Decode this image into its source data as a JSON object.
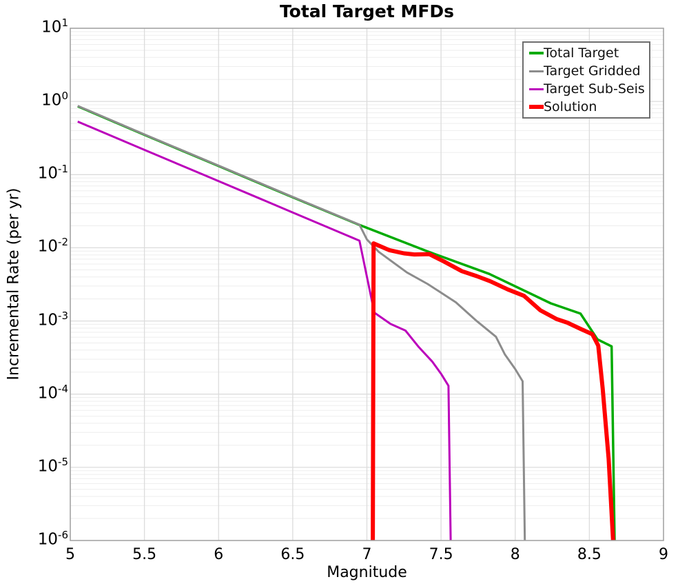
{
  "title": "Total Target MFDs",
  "xlabel": "Magnitude",
  "ylabel": "Incremental Rate (per yr)",
  "chart_data": {
    "type": "line",
    "title": "Total Target MFDs",
    "xlabel": "Magnitude",
    "ylabel": "Incremental Rate (per yr)",
    "x_scale": "linear",
    "y_scale": "log",
    "xlim": [
      5,
      9
    ],
    "ylim_log10": [
      -6,
      1
    ],
    "x_ticks": [
      5,
      5.5,
      6,
      6.5,
      7,
      7.5,
      8,
      8.5,
      9
    ],
    "x_tick_labels": [
      "5",
      "5.5",
      "6",
      "6.5",
      "7",
      "7.5",
      "8",
      "8.5",
      "9"
    ],
    "y_tick_exponents": [
      1,
      0,
      -1,
      -2,
      -3,
      -4,
      -5,
      -6
    ],
    "grid": {
      "major": true,
      "minor_y": true,
      "major_color": "#dcdcdc",
      "minor_color": "#ededed",
      "border_color": "#a3a3a3"
    },
    "legend": {
      "position": "upper right",
      "entries": [
        "Total Target",
        "Target Gridded",
        "Target Sub-Seis",
        "Solution"
      ]
    },
    "series": [
      {
        "name": "Total Target",
        "color": "#00ab00",
        "width": 3.5,
        "points": [
          [
            5.05,
            0.86
          ],
          [
            5.5,
            0.35
          ],
          [
            6.0,
            0.131
          ],
          [
            6.5,
            0.049
          ],
          [
            6.95,
            0.0205
          ],
          [
            7.41,
            0.0089
          ],
          [
            7.825,
            0.0044
          ],
          [
            8.24,
            0.00174
          ],
          [
            8.44,
            0.00126
          ],
          [
            8.555,
            0.00056
          ],
          [
            8.65,
            0.00045
          ],
          [
            8.67,
            1e-06
          ]
        ]
      },
      {
        "name": "Target Gridded",
        "color": "#8c8c8c",
        "width": 3,
        "points": [
          [
            5.05,
            0.87
          ],
          [
            5.5,
            0.354
          ],
          [
            6.0,
            0.1325
          ],
          [
            6.5,
            0.0496
          ],
          [
            6.95,
            0.0207
          ],
          [
            7.0,
            0.013
          ],
          [
            7.08,
            0.0088
          ],
          [
            7.27,
            0.0046
          ],
          [
            7.41,
            0.0032
          ],
          [
            7.6,
            0.0018
          ],
          [
            7.74,
            0.001
          ],
          [
            7.87,
            0.00061
          ],
          [
            7.93,
            0.00035
          ],
          [
            8.0,
            0.00022
          ],
          [
            8.05,
            0.00015
          ],
          [
            8.065,
            1e-06
          ]
        ]
      },
      {
        "name": "Target Sub-Seis",
        "color": "#bb00bb",
        "width": 3,
        "points": [
          [
            5.05,
            0.53
          ],
          [
            5.5,
            0.218
          ],
          [
            6.0,
            0.0815
          ],
          [
            6.5,
            0.0304
          ],
          [
            6.95,
            0.0125
          ],
          [
            7.05,
            0.0013
          ],
          [
            7.16,
            0.00091
          ],
          [
            7.26,
            0.00074
          ],
          [
            7.35,
            0.00044
          ],
          [
            7.44,
            0.00028
          ],
          [
            7.5,
            0.00019
          ],
          [
            7.55,
            0.00013
          ],
          [
            7.565,
            1e-06
          ]
        ]
      },
      {
        "name": "Solution",
        "color": "#ff0000",
        "width": 6,
        "points": [
          [
            7.04,
            1e-06
          ],
          [
            7.045,
            0.0115
          ],
          [
            7.15,
            0.0093
          ],
          [
            7.25,
            0.0084
          ],
          [
            7.32,
            0.0081
          ],
          [
            7.42,
            0.0082
          ],
          [
            7.52,
            0.0065
          ],
          [
            7.64,
            0.0048
          ],
          [
            7.74,
            0.0041
          ],
          [
            7.83,
            0.0035
          ],
          [
            7.95,
            0.0027
          ],
          [
            8.06,
            0.0022
          ],
          [
            8.17,
            0.0014
          ],
          [
            8.28,
            0.00106
          ],
          [
            8.35,
            0.00095
          ],
          [
            8.44,
            0.00078
          ],
          [
            8.52,
            0.00066
          ],
          [
            8.56,
            0.00046
          ],
          [
            8.59,
            0.00012
          ],
          [
            8.63,
            1.3e-05
          ],
          [
            8.66,
            1e-06
          ]
        ]
      }
    ]
  }
}
